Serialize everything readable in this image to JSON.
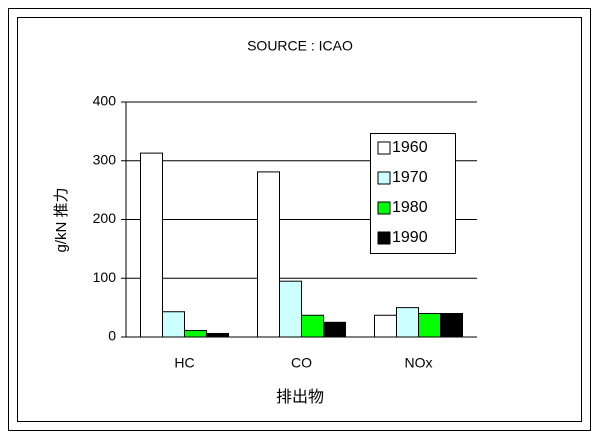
{
  "chart_data": {
    "type": "bar",
    "title": "SOURCE : ICAO",
    "x_label": "排出物",
    "y_label": "g/kN 推力",
    "categories": [
      "HC",
      "CO",
      "NOx"
    ],
    "series": [
      {
        "name": "1960",
        "color": "#ffffff",
        "values": [
          313,
          281,
          37
        ]
      },
      {
        "name": "1970",
        "color": "#ccffff",
        "values": [
          43,
          95,
          50
        ]
      },
      {
        "name": "1980",
        "color": "#00ff00",
        "values": [
          11,
          37,
          40
        ]
      },
      {
        "name": "1990",
        "color": "#000000",
        "values": [
          6,
          25,
          40
        ]
      }
    ],
    "ylim": [
      0,
      400
    ],
    "yticks": [
      0,
      100,
      200,
      300,
      400
    ],
    "grid": true
  }
}
